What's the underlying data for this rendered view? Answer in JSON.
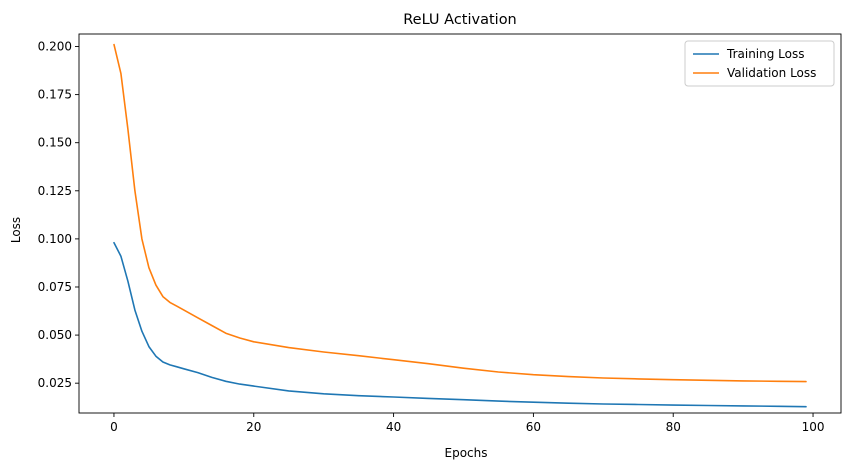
{
  "chart_data": {
    "type": "line",
    "title": "ReLU Activation",
    "xlabel": "Epochs",
    "ylabel": "Loss",
    "xlim": [
      -5,
      104
    ],
    "ylim": [
      0.0095,
      0.2065
    ],
    "x_ticks": [
      0,
      20,
      40,
      60,
      80,
      100
    ],
    "y_ticks": [
      0.025,
      0.05,
      0.075,
      0.1,
      0.125,
      0.15,
      0.175,
      0.2
    ],
    "x_tick_labels": [
      "0",
      "20",
      "40",
      "60",
      "80",
      "100"
    ],
    "y_tick_labels": [
      "0.025",
      "0.050",
      "0.075",
      "0.100",
      "0.125",
      "0.150",
      "0.175",
      "0.200"
    ],
    "grid": false,
    "legend_position": "top-right",
    "series": [
      {
        "name": "Training Loss",
        "color": "#1f77b4",
        "x": [
          0,
          1,
          2,
          3,
          4,
          5,
          6,
          7,
          8,
          9,
          10,
          12,
          14,
          16,
          18,
          20,
          25,
          30,
          35,
          40,
          45,
          50,
          55,
          60,
          65,
          70,
          75,
          80,
          85,
          90,
          95,
          99
        ],
        "y": [
          0.098,
          0.091,
          0.078,
          0.063,
          0.052,
          0.044,
          0.039,
          0.036,
          0.0345,
          0.0335,
          0.0325,
          0.0305,
          0.028,
          0.026,
          0.0245,
          0.0235,
          0.021,
          0.0195,
          0.0185,
          0.0178,
          0.0171,
          0.0164,
          0.0157,
          0.0151,
          0.0146,
          0.0142,
          0.0139,
          0.0136,
          0.0134,
          0.0132,
          0.013,
          0.0128
        ]
      },
      {
        "name": "Validation Loss",
        "color": "#ff7f0e",
        "x": [
          0,
          1,
          2,
          3,
          4,
          5,
          6,
          7,
          8,
          9,
          10,
          12,
          14,
          16,
          18,
          20,
          25,
          30,
          35,
          40,
          45,
          50,
          55,
          60,
          65,
          70,
          75,
          80,
          85,
          90,
          95,
          99
        ],
        "y": [
          0.201,
          0.186,
          0.157,
          0.125,
          0.1,
          0.085,
          0.076,
          0.07,
          0.067,
          0.065,
          0.063,
          0.059,
          0.055,
          0.051,
          0.0485,
          0.0465,
          0.0435,
          0.0412,
          0.0393,
          0.0372,
          0.0351,
          0.0328,
          0.0308,
          0.0294,
          0.0284,
          0.0277,
          0.0272,
          0.0268,
          0.0265,
          0.0262,
          0.026,
          0.0258
        ]
      }
    ]
  }
}
